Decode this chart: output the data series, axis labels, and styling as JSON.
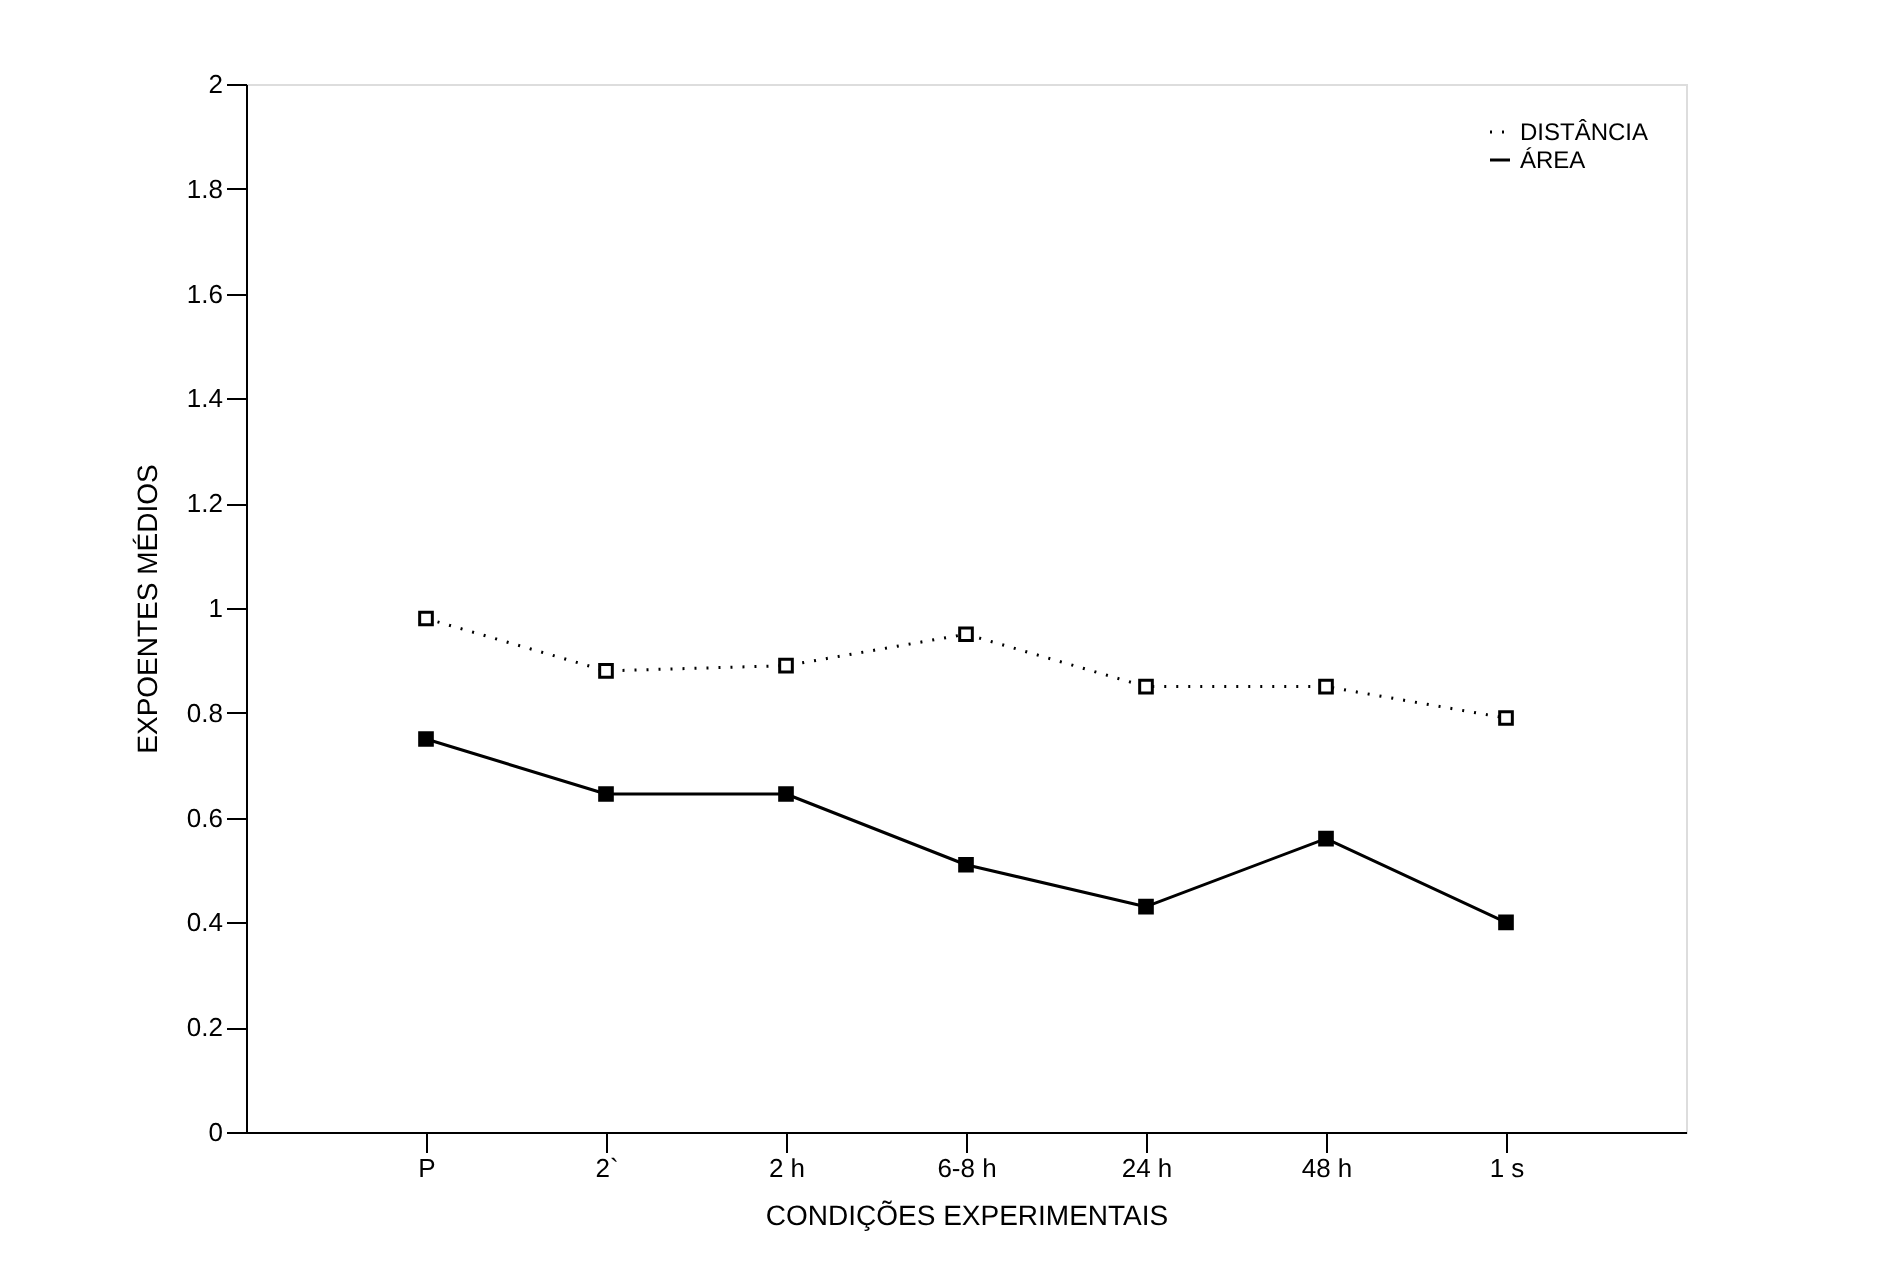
{
  "chart_data": {
    "type": "line",
    "xlabel": "CONDIÇÕES EXPERIMENTAIS",
    "ylabel": "EXPOENTES MÉDIOS",
    "categories": [
      "P",
      "2`",
      "2 h",
      "6-8 h",
      "24 h",
      "48 h",
      "1 s"
    ],
    "series": [
      {
        "name": "DISTÂNCIA",
        "color": "#000000",
        "line_style": "dotted",
        "values": [
          0.98,
          0.88,
          0.89,
          0.95,
          0.85,
          0.85,
          0.79
        ]
      },
      {
        "name": "ÁREA",
        "color": "#000000",
        "line_style": "solid",
        "values": [
          0.75,
          0.645,
          0.645,
          0.51,
          0.43,
          0.56,
          0.4
        ]
      }
    ],
    "ylim": [
      0,
      2
    ],
    "yticks": [
      0,
      0.2,
      0.4,
      0.6,
      0.8,
      1,
      1.2,
      1.4,
      1.6,
      1.8,
      2
    ],
    "marker": "square",
    "grid": false,
    "legend": "top right"
  }
}
